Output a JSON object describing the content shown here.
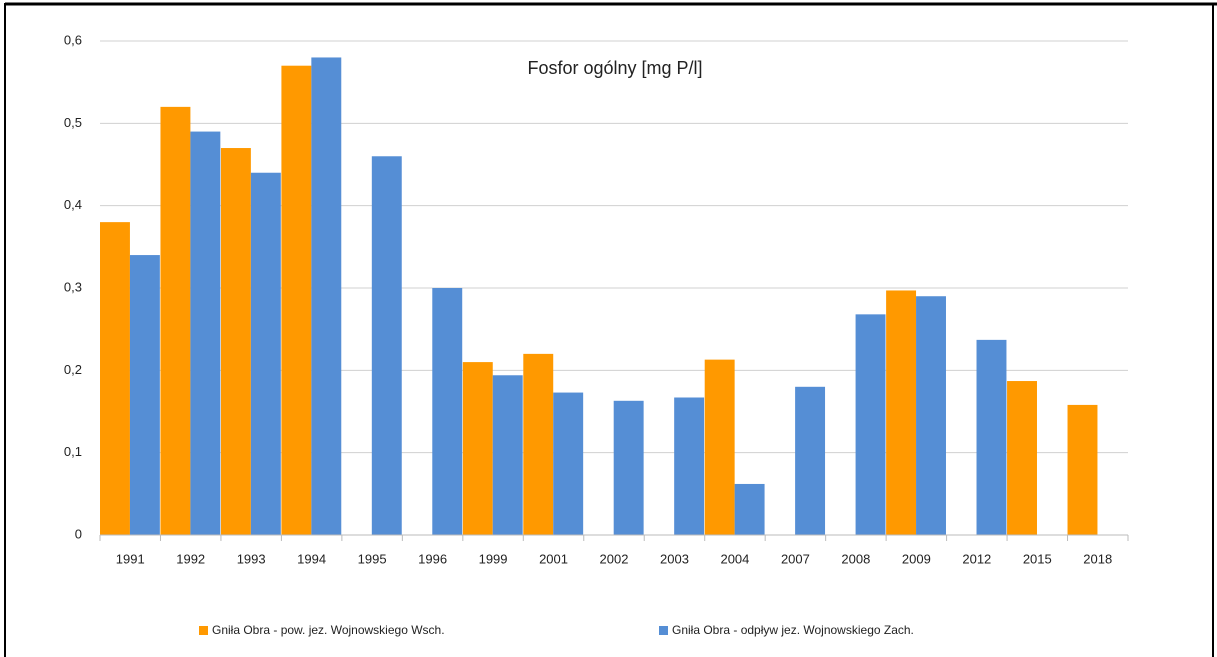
{
  "chart_data": {
    "type": "bar",
    "title": "Fosfor ogólny [mg P/l]",
    "categories": [
      "1991",
      "1992",
      "1993",
      "1994",
      "1995",
      "1996",
      "1999",
      "2001",
      "2002",
      "2003",
      "2004",
      "2007",
      "2008",
      "2009",
      "2012",
      "2015",
      "2018"
    ],
    "series": [
      {
        "name": "Gniła Obra - pow. jez. Wojnowskiego Wsch.",
        "color": "#ff9900",
        "values": [
          0.38,
          0.52,
          0.47,
          0.57,
          null,
          null,
          0.21,
          0.22,
          null,
          null,
          0.213,
          null,
          null,
          0.297,
          null,
          0.187,
          0.158
        ]
      },
      {
        "name": "Gniła Obra - odpływ jez. Wojnowskiego Zach.",
        "color": "#558ed5",
        "values": [
          0.34,
          0.49,
          0.44,
          0.58,
          0.46,
          0.3,
          0.194,
          0.173,
          0.163,
          0.167,
          0.062,
          0.18,
          0.268,
          0.29,
          0.237,
          null,
          null
        ]
      }
    ],
    "ylim": [
      0,
      0.6
    ],
    "yticks": [
      0,
      {
        "value": 0.1,
        "label": "0,1"
      },
      {
        "value": 0.2,
        "label": "0,2"
      },
      {
        "value": 0.3,
        "label": "0,3"
      },
      {
        "value": 0.4,
        "label": "0,4"
      },
      {
        "value": 0.5,
        "label": "0,5"
      },
      {
        "value": 0.6,
        "label": "0,6"
      }
    ],
    "grid": true,
    "legend": "bottom"
  }
}
